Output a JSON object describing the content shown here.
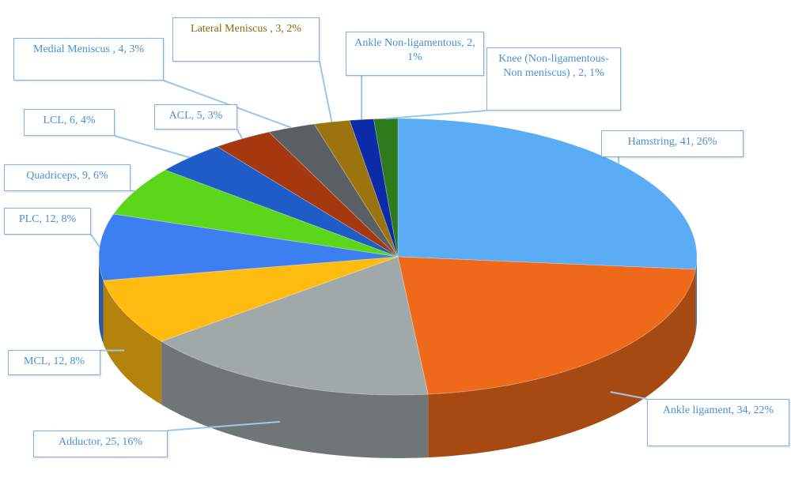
{
  "chart_data": {
    "type": "pie",
    "categories": [
      "Hamstring",
      "Ankle ligament",
      "Adductor",
      "MCL",
      "PLC",
      "Quadriceps",
      "LCL",
      "ACL",
      "Medial Meniscus",
      "Lateral Meniscus",
      "Ankle Non-ligamentous",
      "Knee (Non-ligamentous-Non meniscus)"
    ],
    "values": [
      41,
      34,
      25,
      12,
      12,
      9,
      6,
      5,
      4,
      3,
      2,
      2
    ],
    "value_labels": [
      "Hamstring, 41, 26%",
      "Ankle ligament, 34, 22%",
      "Adductor, 25, 16%",
      "MCL, 12, 8%",
      "PLC, 12, 8%",
      "Quadriceps, 9, 6%",
      "LCL, 6, 4%",
      "ACL, 5, 3%",
      "Medial Meniscus , 4, 3%",
      "Lateral Meniscus , 3, 2%",
      "Ankle Non-ligamentous, 2, 1%",
      "Knee (Non-ligamentous-Non meniscus) , 2, 1%"
    ],
    "colors": [
      "#5aacf5",
      "#ee6a1a",
      "#a0a8a8",
      "#ffbb0f",
      "#3d7ff0",
      "#5cd61a",
      "#1f5cc8",
      "#a5380f",
      "#5a5f63",
      "#9b7410",
      "#0c2ba8",
      "#2f7a1c"
    ]
  }
}
